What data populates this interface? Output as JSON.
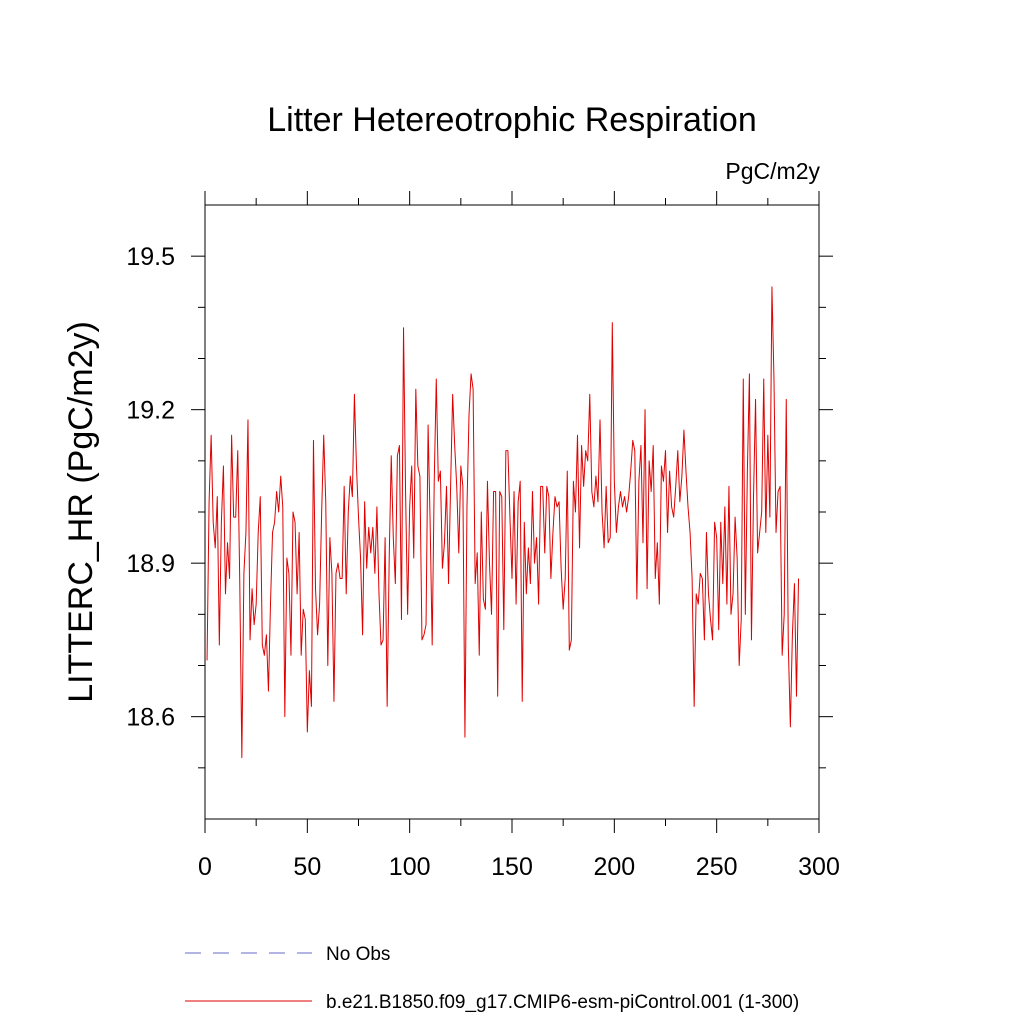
{
  "chart_data": {
    "type": "line",
    "title": "Litter Hetereotrophic Respiration",
    "units": "PgC/m2y",
    "xlabel": "",
    "ylabel": "LITTERC_HR  (PgC/m2y)",
    "xlim": [
      0,
      300
    ],
    "ylim": [
      18.4,
      19.6
    ],
    "xticks": [
      0,
      50,
      100,
      150,
      200,
      250,
      300
    ],
    "xtick_labels": [
      "0",
      "50",
      "100",
      "150",
      "200",
      "250",
      "300"
    ],
    "yticks": [
      18.6,
      18.9,
      19.2,
      19.5
    ],
    "ytick_labels": [
      "18.6",
      "18.9",
      "19.2",
      "19.5"
    ],
    "grid": false,
    "legend_position": "bottom",
    "series": [
      {
        "name": "No Obs",
        "color": "#6a6ac8",
        "style": "dashed",
        "values": []
      },
      {
        "name": "b.e21.B1850.f09_g17.CMIP6-esm-piControl.001 (1-300)",
        "color": "#e00000",
        "style": "solid",
        "x_start": 1,
        "values": [
          18.71,
          19.02,
          19.15,
          18.98,
          18.93,
          19.03,
          18.74,
          18.98,
          19.09,
          18.84,
          18.94,
          18.87,
          19.15,
          18.99,
          18.99,
          19.12,
          18.86,
          18.52,
          18.88,
          18.96,
          19.18,
          18.75,
          18.85,
          18.78,
          18.82,
          18.96,
          19.03,
          18.74,
          18.72,
          18.76,
          18.65,
          18.82,
          18.96,
          18.98,
          19.04,
          19.0,
          19.07,
          19.01,
          18.6,
          18.91,
          18.88,
          18.72,
          19.0,
          18.98,
          18.84,
          18.96,
          18.72,
          18.81,
          18.79,
          18.57,
          18.69,
          18.62,
          19.14,
          18.85,
          18.76,
          18.82,
          19.0,
          19.15,
          19.02,
          18.7,
          18.95,
          18.88,
          18.63,
          18.88,
          18.9,
          18.87,
          18.87,
          19.05,
          18.84,
          19.0,
          19.07,
          19.03,
          19.23,
          19.09,
          18.99,
          18.91,
          18.76,
          19.02,
          18.89,
          18.97,
          18.92,
          18.97,
          18.88,
          19.01,
          18.84,
          18.74,
          18.75,
          18.95,
          18.62,
          18.91,
          19.11,
          18.95,
          18.86,
          19.11,
          19.13,
          18.79,
          19.36,
          19.04,
          18.8,
          19.01,
          19.09,
          18.91,
          19.24,
          19.09,
          19.07,
          18.75,
          18.76,
          18.78,
          19.17,
          18.98,
          18.74,
          19.06,
          19.26,
          19.06,
          19.08,
          18.89,
          18.94,
          19.05,
          18.86,
          19.05,
          19.23,
          19.13,
          19.05,
          18.92,
          19.09,
          19.05,
          18.56,
          19.01,
          19.19,
          19.27,
          19.24,
          18.86,
          18.92,
          18.72,
          19.0,
          18.83,
          18.81,
          19.06,
          18.9,
          18.8,
          19.04,
          19.04,
          18.64,
          19.04,
          19.03,
          18.77,
          19.12,
          19.12,
          18.99,
          18.87,
          19.04,
          18.82,
          19.02,
          19.06,
          18.63,
          18.98,
          18.84,
          18.93,
          18.86,
          19.04,
          18.9,
          18.95,
          18.82,
          19.05,
          19.05,
          18.92,
          19.05,
          19.03,
          18.87,
          18.96,
          19.03,
          19.01,
          19.02,
          18.89,
          18.81,
          18.87,
          19.08,
          18.73,
          18.75,
          19.06,
          19.0,
          19.15,
          18.93,
          19.13,
          19.05,
          19.12,
          19.1,
          19.23,
          19.04,
          19.01,
          19.07,
          19.02,
          19.18,
          19.0,
          18.93,
          19.05,
          18.94,
          18.95,
          19.37,
          19.06,
          18.96,
          19.01,
          19.04,
          19.01,
          19.03,
          19.0,
          19.03,
          19.08,
          19.14,
          19.12,
          18.83,
          19.06,
          19.13,
          18.94,
          19.2,
          18.85,
          19.1,
          19.04,
          19.13,
          18.87,
          18.94,
          18.82,
          19.09,
          19.06,
          19.12,
          18.96,
          19.08,
          19.01,
          18.99,
          19.05,
          19.12,
          19.02,
          19.07,
          19.16,
          19.08,
          19.01,
          18.96,
          18.87,
          18.62,
          18.84,
          18.82,
          18.88,
          18.87,
          18.75,
          18.96,
          18.84,
          18.79,
          18.75,
          18.98,
          18.95,
          18.77,
          18.98,
          18.86,
          19.01,
          18.82,
          19.05,
          18.8,
          18.84,
          18.99,
          18.91,
          18.7,
          18.79,
          19.26,
          18.8,
          19.08,
          19.27,
          18.75,
          19.03,
          19.22,
          18.92,
          18.96,
          19.0,
          19.26,
          18.96,
          19.15,
          18.99,
          19.44,
          19.26,
          18.96,
          19.04,
          19.05,
          18.72,
          18.8,
          19.22,
          18.74,
          18.58,
          18.76,
          18.86,
          18.64,
          18.87
        ]
      }
    ]
  }
}
